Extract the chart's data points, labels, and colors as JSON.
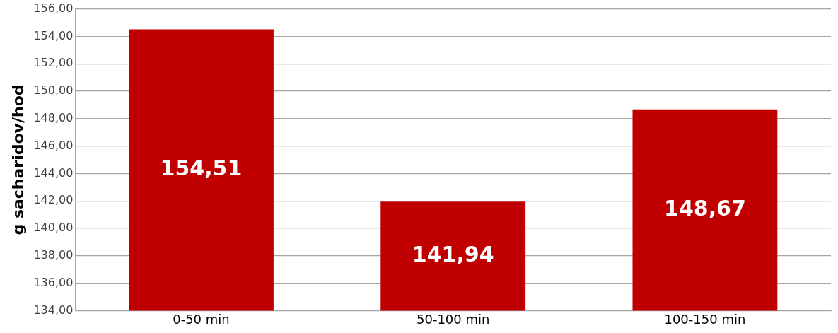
{
  "chart_data": {
    "type": "bar",
    "ylabel": "g sacharidov/hod",
    "categories": [
      "0-50 min",
      "50-100 min",
      "100-150 min"
    ],
    "values": [
      154.51,
      141.94,
      148.67
    ],
    "color": "#c00000",
    "value_labels": [
      "154,51",
      "141,94",
      "148,67"
    ],
    "ylim": [
      134,
      156
    ],
    "yticks": [
      {
        "value": 134,
        "label": "134,00"
      },
      {
        "value": 136,
        "label": "136,00"
      },
      {
        "value": 138,
        "label": "138,00"
      },
      {
        "value": 140,
        "label": "140,00"
      },
      {
        "value": 142,
        "label": "142,00"
      },
      {
        "value": 144,
        "label": "144,00"
      },
      {
        "value": 146,
        "label": "146,00"
      },
      {
        "value": 148,
        "label": "148,00"
      },
      {
        "value": 150,
        "label": "150,00"
      },
      {
        "value": 152,
        "label": "152,00"
      },
      {
        "value": 154,
        "label": "154,00"
      },
      {
        "value": 156,
        "label": "156,00"
      }
    ],
    "grid": "y",
    "legend": false
  }
}
